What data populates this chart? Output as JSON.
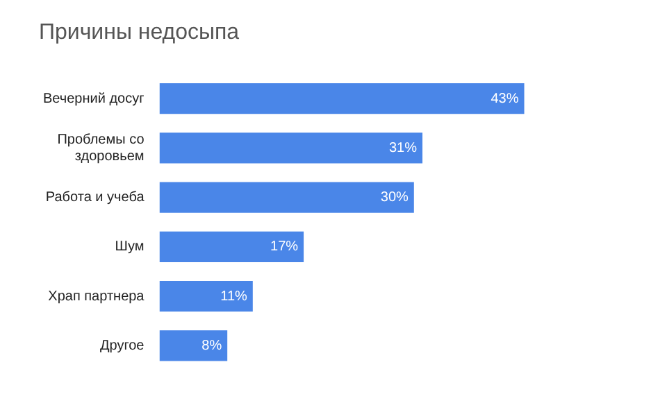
{
  "chart_data": {
    "type": "bar",
    "title": "Причины недосыпа",
    "orientation": "horizontal",
    "categories": [
      "Вечерний досуг",
      "Проблемы со здоровьем",
      "Работа и учеба",
      "Шум",
      "Храп партнера",
      "Другое"
    ],
    "values": [
      43,
      31,
      30,
      17,
      11,
      8
    ],
    "value_labels": [
      "43%",
      "31%",
      "30%",
      "17%",
      "11%",
      "8%"
    ],
    "color": "#4a86e8",
    "legend": false
  }
}
